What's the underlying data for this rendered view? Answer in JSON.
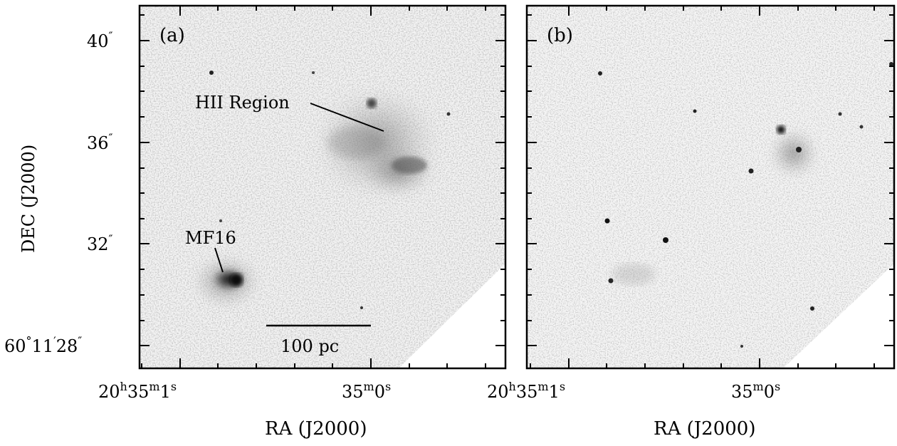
{
  "panels": [
    {
      "id": "a",
      "label": "(a)",
      "annotations": {
        "hii": "HII Region",
        "mf16": "MF16",
        "scale": "100 pc"
      }
    },
    {
      "id": "b",
      "label": "(b)",
      "annotations": {}
    }
  ],
  "axes": {
    "y_title": "DEC (J2000)",
    "x_title": "RA (J2000)",
    "y_ticks": [
      {
        "main": "40",
        "sec": "″"
      },
      {
        "main": "36",
        "sec": "″"
      },
      {
        "main": "32",
        "sec": "″"
      },
      {
        "deg": "60",
        "degsym": "°",
        "min": "11",
        "minsym": "′",
        "main": "28",
        "sec": "″"
      }
    ],
    "x_ticks": [
      {
        "h": "20",
        "hsym": "h",
        "m": "35",
        "msym": "m",
        "s": "1",
        "ssym": "s"
      },
      {
        "m": "35",
        "msym": "m",
        "s": "0",
        "ssym": "s"
      }
    ]
  },
  "colors": {
    "background": "#ffffff",
    "noise_gray": "#c8c8c8",
    "emission_dark": "#202020",
    "frame": "#000000"
  }
}
